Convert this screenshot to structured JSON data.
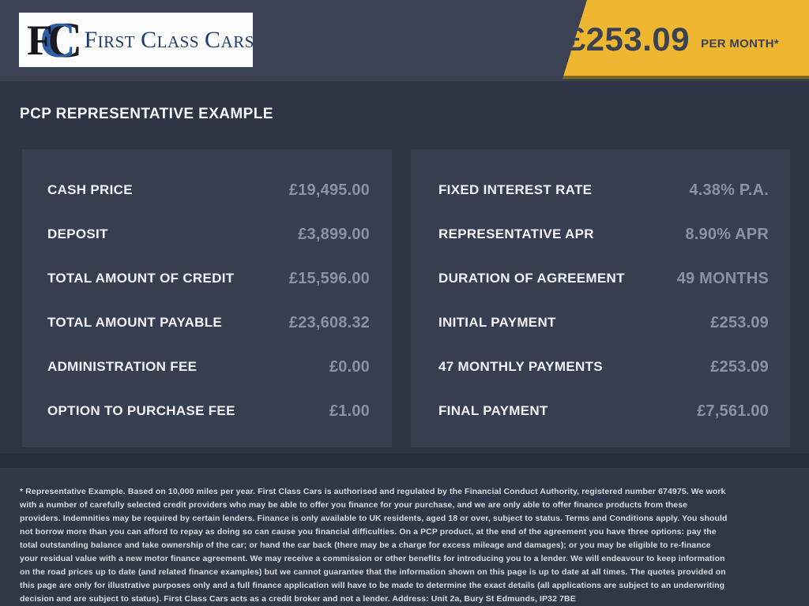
{
  "brand": {
    "monogram": [
      {
        "char": "F"
      },
      {
        "char": "C"
      },
      {
        "char": "C"
      }
    ],
    "wordmark": [
      {
        "initial": "F",
        "rest": "IRST"
      },
      {
        "initial": "C",
        "rest": "LASS"
      },
      {
        "initial": "C",
        "rest": "ARS"
      }
    ],
    "name": "First Class Cars"
  },
  "banner": {
    "amount": "£253.09",
    "period": "PER MONTH*"
  },
  "title": "PCP REPRESENTATIVE EXAMPLE",
  "finance": {
    "left": [
      {
        "label": "CASH PRICE",
        "value": "£19,495.00"
      },
      {
        "label": "DEPOSIT",
        "value": "£3,899.00"
      },
      {
        "label": "TOTAL AMOUNT OF CREDIT",
        "value": "£15,596.00"
      },
      {
        "label": "TOTAL AMOUNT PAYABLE",
        "value": "£23,608.32"
      },
      {
        "label": "ADMINISTRATION FEE",
        "value": "£0.00"
      },
      {
        "label": "OPTION TO PURCHASE FEE",
        "value": "£1.00"
      }
    ],
    "right": [
      {
        "label": "FIXED INTEREST RATE",
        "value": "4.38% P.A."
      },
      {
        "label": "REPRESENTATIVE APR",
        "value": "8.90% APR"
      },
      {
        "label": "DURATION OF AGREEMENT",
        "value": "49 MONTHS"
      },
      {
        "label": "INITIAL PAYMENT",
        "value": "£253.09"
      },
      {
        "label": "47 MONTHLY PAYMENTS",
        "value": "£253.09"
      },
      {
        "label": "FINAL PAYMENT",
        "value": "£7,561.00"
      }
    ]
  },
  "disclaimer": "* Representative Example. Based on 10,000 miles per year. First Class Cars is authorised and regulated by the Financial Conduct Authority, registered number 674975. We work with a number of carefully selected credit providers who may be able to offer you finance for your purchase, and we are only able to offer finance products from these providers. Indemnities may be required by certain lenders. Finance is only available to UK residents, aged 18 or over, subject to status. Terms and Conditions apply. You should not borrow more than you can afford to repay as doing so can cause you financial difficulties. On a PCP product, at the end of the agreement you have three options: pay the total outstanding balance and take ownership of the car; or hand the car back (there may be a charge for excess mileage and damages); or you may be eligible to re-finance your residual value with a new motor finance agreement. We may receive a commission or other benefits for introducing you to a lender. We will endeavour to keep information on the road prices up to date (and related finance examples) but we cannot guarantee that the information shown on this page is up to date at all times. The quotes provided on this page are only for illustrative purposes only and a full finance application will have to be made to determine the exact details (all applications are subject to an underwriting decision and are subject to status). First Class Cars acts as a credit broker and not a lender. Address: Unit 2a, Bury St Edmunds, IP32 7BE",
  "colors": {
    "accent_yellow": "#efb72f",
    "header_bg": "#3b4254",
    "page_bg": "#2d3444",
    "panel_bg": "#363e50",
    "label_text": "#f0f2f6",
    "value_text": "#8c92a2",
    "logo_navy": "#1e3c70",
    "logo_blue": "#2d5fa6"
  }
}
